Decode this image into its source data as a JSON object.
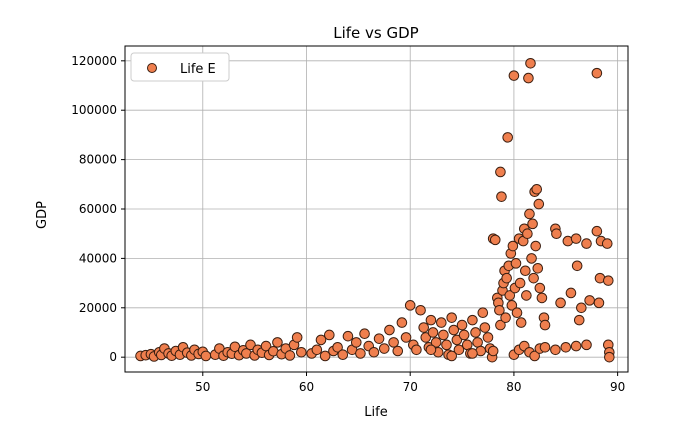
{
  "chart_data": {
    "type": "scatter",
    "title": "Life vs GDP",
    "xlabel": "Life",
    "ylabel": "GDP",
    "xlim": [
      42.5,
      91
    ],
    "ylim": [
      -6000,
      126000
    ],
    "xticks": [
      50,
      60,
      70,
      80,
      90
    ],
    "yticks": [
      0,
      20000,
      40000,
      60000,
      80000,
      100000,
      120000
    ],
    "grid": true,
    "legend": {
      "placement": "top-left",
      "entries": [
        "Life E"
      ]
    },
    "marker_color": "#ef7f4e",
    "marker_edge": "#3a1e10",
    "series": [
      {
        "name": "Life E",
        "points": [
          [
            44,
            500
          ],
          [
            44.5,
            800
          ],
          [
            45,
            1200
          ],
          [
            45.3,
            300
          ],
          [
            45.8,
            2000
          ],
          [
            46,
            900
          ],
          [
            46.3,
            3500
          ],
          [
            46.7,
            1500
          ],
          [
            47,
            600
          ],
          [
            47.4,
            2500
          ],
          [
            47.8,
            1000
          ],
          [
            48.1,
            4000
          ],
          [
            48.5,
            1800
          ],
          [
            48.9,
            700
          ],
          [
            49.2,
            3000
          ],
          [
            49.6,
            1300
          ],
          [
            50,
            2200
          ],
          [
            50.3,
            500
          ],
          [
            51.2,
            1000
          ],
          [
            51.6,
            3500
          ],
          [
            52,
            600
          ],
          [
            52.4,
            2000
          ],
          [
            52.8,
            1400
          ],
          [
            53.1,
            4200
          ],
          [
            53.5,
            800
          ],
          [
            53.9,
            2800
          ],
          [
            54.2,
            1500
          ],
          [
            54.6,
            5000
          ],
          [
            55,
            700
          ],
          [
            55.3,
            3000
          ],
          [
            55.7,
            1800
          ],
          [
            56.1,
            4500
          ],
          [
            56.4,
            900
          ],
          [
            56.8,
            2400
          ],
          [
            57.2,
            6000
          ],
          [
            57.6,
            1200
          ],
          [
            58,
            3500
          ],
          [
            58.4,
            700
          ],
          [
            58.8,
            5000
          ],
          [
            59.1,
            8000
          ],
          [
            59.5,
            2000
          ],
          [
            60.5,
            1500
          ],
          [
            61,
            3000
          ],
          [
            61.4,
            7000
          ],
          [
            61.8,
            500
          ],
          [
            62.2,
            9000
          ],
          [
            62.6,
            2500
          ],
          [
            63,
            4000
          ],
          [
            63.5,
            1000
          ],
          [
            64,
            8500
          ],
          [
            64.4,
            3000
          ],
          [
            64.8,
            6000
          ],
          [
            65.2,
            1500
          ],
          [
            65.6,
            9500
          ],
          [
            66,
            4500
          ],
          [
            66.5,
            2000
          ],
          [
            67,
            7500
          ],
          [
            67.5,
            3500
          ],
          [
            68,
            11000
          ],
          [
            68.4,
            6000
          ],
          [
            68.8,
            2500
          ],
          [
            69.2,
            14000
          ],
          [
            69.6,
            8000
          ],
          [
            70,
            21000
          ],
          [
            70.3,
            5000
          ],
          [
            70.6,
            3000
          ],
          [
            71,
            19000
          ],
          [
            71.3,
            12000
          ],
          [
            71.5,
            8000
          ],
          [
            71.8,
            4000
          ],
          [
            72,
            15000
          ],
          [
            72.2,
            10000
          ],
          [
            72.5,
            6000
          ],
          [
            72.7,
            2000
          ],
          [
            73,
            14000
          ],
          [
            73.2,
            9000
          ],
          [
            73.5,
            5000
          ],
          [
            73.7,
            1000
          ],
          [
            74,
            16000
          ],
          [
            74.2,
            11000
          ],
          [
            74.5,
            7000
          ],
          [
            74.7,
            3000
          ],
          [
            75,
            13000
          ],
          [
            75.2,
            9000
          ],
          [
            75.5,
            5000
          ],
          [
            75.8,
            1500
          ],
          [
            76,
            15000
          ],
          [
            76.3,
            10000
          ],
          [
            76.5,
            6000
          ],
          [
            76.8,
            2500
          ],
          [
            77,
            18000
          ],
          [
            77.2,
            12000
          ],
          [
            77.5,
            8000
          ],
          [
            77.7,
            3500
          ],
          [
            77.9,
            0
          ],
          [
            78,
            48000
          ],
          [
            78.2,
            47500
          ],
          [
            78.4,
            24000
          ],
          [
            78.5,
            22000
          ],
          [
            78.6,
            19000
          ],
          [
            78.7,
            13000
          ],
          [
            78.7,
            75000
          ],
          [
            78.8,
            65000
          ],
          [
            78.9,
            27000
          ],
          [
            79,
            30000
          ],
          [
            79.1,
            35000
          ],
          [
            79.2,
            16000
          ],
          [
            79.3,
            32000
          ],
          [
            79.4,
            89000
          ],
          [
            79.5,
            37000
          ],
          [
            79.6,
            25000
          ],
          [
            79.7,
            42000
          ],
          [
            79.8,
            21000
          ],
          [
            79.9,
            45000
          ],
          [
            80,
            114000
          ],
          [
            80.1,
            28000
          ],
          [
            80.2,
            38000
          ],
          [
            80.3,
            18000
          ],
          [
            80.5,
            48000
          ],
          [
            80.6,
            30000
          ],
          [
            80.7,
            14000
          ],
          [
            80.9,
            47000
          ],
          [
            81,
            52000
          ],
          [
            81.1,
            35000
          ],
          [
            81.2,
            25000
          ],
          [
            81.3,
            50000
          ],
          [
            81.4,
            113000
          ],
          [
            81.5,
            58000
          ],
          [
            81.6,
            119000
          ],
          [
            81.7,
            40000
          ],
          [
            81.8,
            54000
          ],
          [
            81.9,
            32000
          ],
          [
            82,
            67000
          ],
          [
            82.1,
            45000
          ],
          [
            82.2,
            68000
          ],
          [
            82.3,
            36000
          ],
          [
            82.4,
            62000
          ],
          [
            82.5,
            28000
          ],
          [
            82.7,
            24000
          ],
          [
            82.9,
            16000
          ],
          [
            83,
            13000
          ],
          [
            84,
            52000
          ],
          [
            84.1,
            50000
          ],
          [
            84.5,
            22000
          ],
          [
            85,
            4000
          ],
          [
            85.2,
            47000
          ],
          [
            85.5,
            26000
          ],
          [
            86,
            48000
          ],
          [
            86.1,
            37000
          ],
          [
            86.3,
            15000
          ],
          [
            86.5,
            20000
          ],
          [
            87,
            46000
          ],
          [
            87.3,
            23000
          ],
          [
            88,
            51000
          ],
          [
            88,
            115000
          ],
          [
            88.2,
            22000
          ],
          [
            88.3,
            32000
          ],
          [
            88.4,
            47000
          ],
          [
            89,
            46000
          ],
          [
            89.1,
            31000
          ],
          [
            89.1,
            5000
          ],
          [
            89.2,
            2000
          ],
          [
            89.2,
            0
          ],
          [
            72,
            3000
          ],
          [
            74,
            500
          ],
          [
            76,
            1500
          ],
          [
            78,
            2500
          ],
          [
            80,
            1000
          ],
          [
            80.5,
            3000
          ],
          [
            81,
            4500
          ],
          [
            81.5,
            2000
          ],
          [
            82,
            500
          ],
          [
            82.5,
            3500
          ],
          [
            83,
            4000
          ],
          [
            84,
            3000
          ],
          [
            86,
            4500
          ],
          [
            87,
            5000
          ]
        ]
      }
    ]
  }
}
